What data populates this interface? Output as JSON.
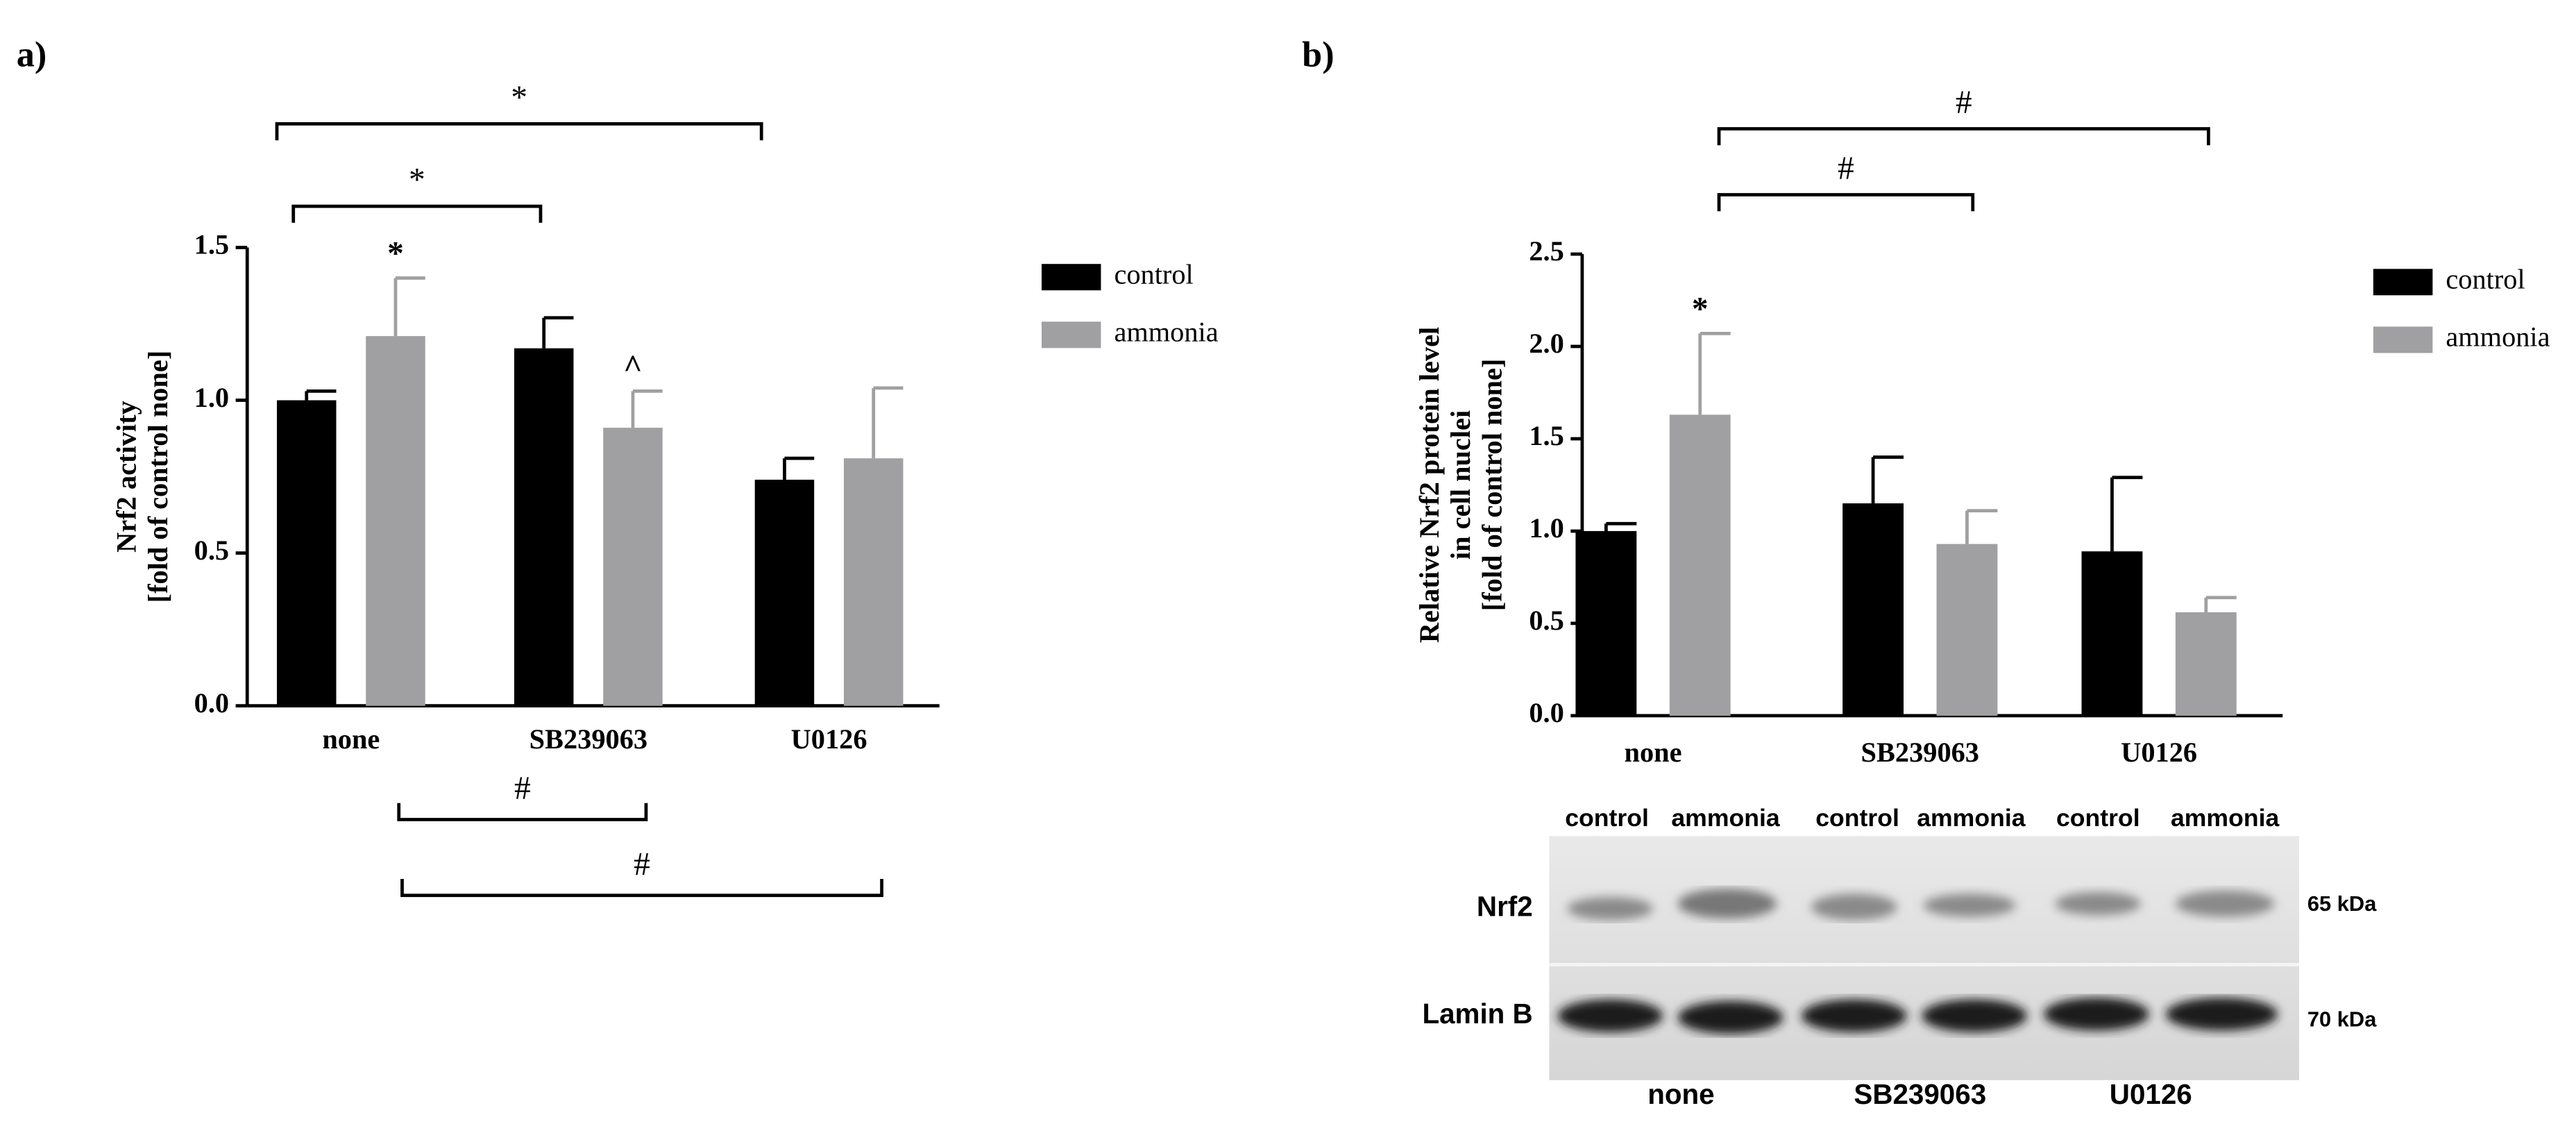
{
  "chart_data": [
    {
      "type": "bar",
      "panel_label": "a)",
      "ylabel": [
        "Nrf2 activity",
        "[fold of control none]"
      ],
      "categories": [
        "none",
        "SB239063",
        "U0126"
      ],
      "series": [
        {
          "name": "control",
          "color": "#000000",
          "values": [
            1.0,
            1.17,
            0.74
          ],
          "errors": [
            0.03,
            0.1,
            0.07
          ]
        },
        {
          "name": "ammonia",
          "color": "#a0a0a2",
          "values": [
            1.21,
            0.91,
            0.81
          ],
          "errors": [
            0.19,
            0.12,
            0.23
          ]
        }
      ],
      "ylim": [
        0,
        1.5
      ],
      "yticks": [
        {
          "value": 0,
          "label": "0.0"
        },
        0.5,
        {
          "value": 1,
          "label": "1.0"
        },
        1.5
      ],
      "annotations": [
        "*",
        "^",
        "*",
        "*",
        "#",
        "#"
      ]
    },
    {
      "type": "bar",
      "panel_label": "b)",
      "ylabel": [
        "Relative Nrf2 protein level",
        "in cell nuclei",
        "[fold of control none]"
      ],
      "categories": [
        "none",
        "SB239063",
        "U0126"
      ],
      "series": [
        {
          "name": "control",
          "color": "#000000",
          "values": [
            1.0,
            1.15,
            0.89
          ],
          "errors": [
            0.04,
            0.25,
            0.4
          ]
        },
        {
          "name": "ammonia",
          "color": "#a0a0a2",
          "values": [
            1.63,
            0.93,
            0.56
          ],
          "errors": [
            0.44,
            0.18,
            0.08
          ]
        }
      ],
      "ylim": [
        0,
        2.5
      ],
      "yticks": [
        {
          "value": 0,
          "label": "0.0"
        },
        0.5,
        {
          "value": 1,
          "label": "1.0"
        },
        1.5,
        {
          "value": 2,
          "label": "2.0"
        },
        2.5
      ],
      "annotations": [
        "*",
        "#",
        "#"
      ]
    }
  ],
  "blot": {
    "lanes": [
      "control",
      "ammonia",
      "control",
      "ammonia",
      "control",
      "ammonia"
    ],
    "rows": [
      "Nrf2",
      "Lamin B"
    ],
    "sizes": [
      "65 kDa",
      "70 kDa"
    ],
    "groups": [
      "none",
      "SB239063",
      "U0126"
    ]
  }
}
